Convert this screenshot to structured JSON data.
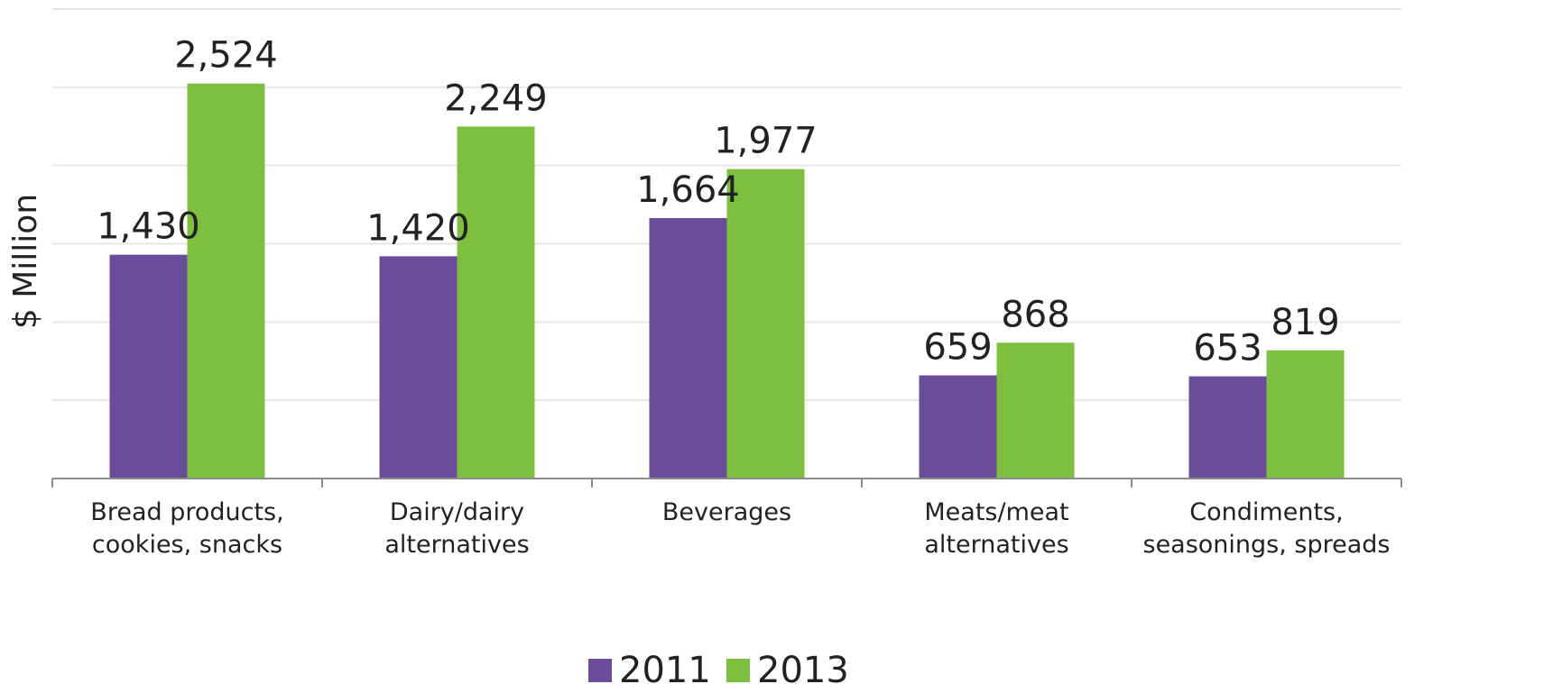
{
  "chart_data": {
    "type": "bar",
    "title": "",
    "xlabel": "",
    "ylabel": "$ Million",
    "ylim": [
      0,
      3000
    ],
    "grid": true,
    "legend_position": "bottom",
    "categories": [
      [
        "Bread products,",
        "cookies, snacks"
      ],
      [
        "Dairy/dairy",
        "alternatives"
      ],
      [
        "Beverages"
      ],
      [
        "Meats/meat",
        "alternatives"
      ],
      [
        "Condiments,",
        "seasonings, spreads"
      ]
    ],
    "series": [
      {
        "name": "2011",
        "color": "#6b4c9a",
        "values": [
          1430,
          1420,
          1664,
          659,
          653
        ],
        "labels": [
          "1,430",
          "1,420",
          "1,664",
          "659",
          "653"
        ]
      },
      {
        "name": "2013",
        "color": "#7dbf3f",
        "values": [
          2524,
          2249,
          1977,
          868,
          819
        ],
        "labels": [
          "2,524",
          "2,249",
          "1,977",
          "868",
          "819"
        ]
      }
    ]
  }
}
